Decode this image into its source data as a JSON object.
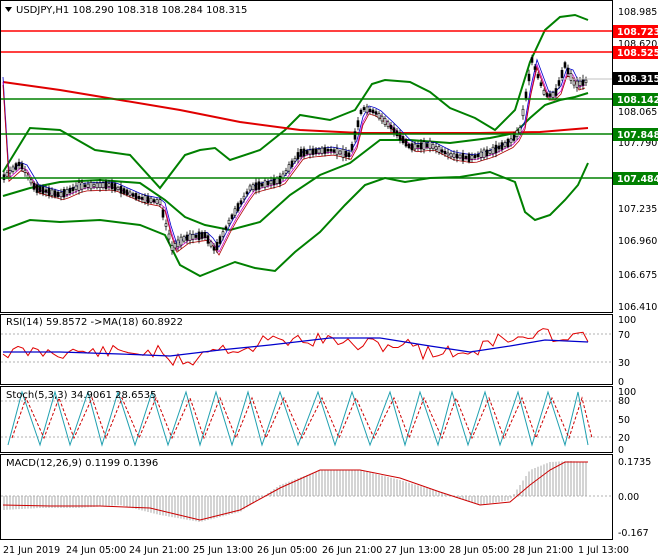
{
  "chart": {
    "symbol_line": "USDJPY,H1  108.290 108.318 108.284 108.315",
    "current_price": "108.315",
    "price_axis_ticks": [
      "108.985",
      "108.620",
      "108.065",
      "107.790",
      "107.235",
      "106.960",
      "106.675",
      "106.410"
    ],
    "level_tags": [
      {
        "label": "108.723",
        "color": "#ff0000"
      },
      {
        "label": "108.525",
        "color": "#ff0000"
      },
      {
        "label": "108.142",
        "color": "#008000"
      },
      {
        "label": "107.848",
        "color": "#008000"
      },
      {
        "label": "107.484",
        "color": "#008000"
      }
    ],
    "time_axis": [
      "21 Jun 2019",
      "24 Jun 05:00",
      "24 Jun 21:00",
      "25 Jun 13:00",
      "26 Jun 05:00",
      "26 Jun 21:00",
      "27 Jun 13:00",
      "28 Jun 05:00",
      "28 Jun 21:00",
      "1 Jul 13:00"
    ]
  },
  "rsi": {
    "label": "RSI(14) 59.8572  ->MA(18) 60.8922",
    "ticks": [
      "100",
      "70",
      "30",
      "0"
    ]
  },
  "stoch": {
    "label": "Stoch(5,3,3) 34.9061 28.6535",
    "ticks": [
      "100",
      "80",
      "50",
      "20",
      "0"
    ]
  },
  "macd": {
    "label": "MACD(12,26,9) 0.1199 0.1396",
    "ticks": [
      "0.1735",
      "0.00",
      "-0.167"
    ]
  },
  "colors": {
    "support": "#008000",
    "resistance": "#ff0000",
    "ma_red": "#e00000",
    "rsi": "#e00000",
    "rsi_ma": "#0000cc",
    "stoch_main": "#20a0b0",
    "stoch_signal": "#cc0000",
    "macd_signal": "#cc0000"
  }
}
